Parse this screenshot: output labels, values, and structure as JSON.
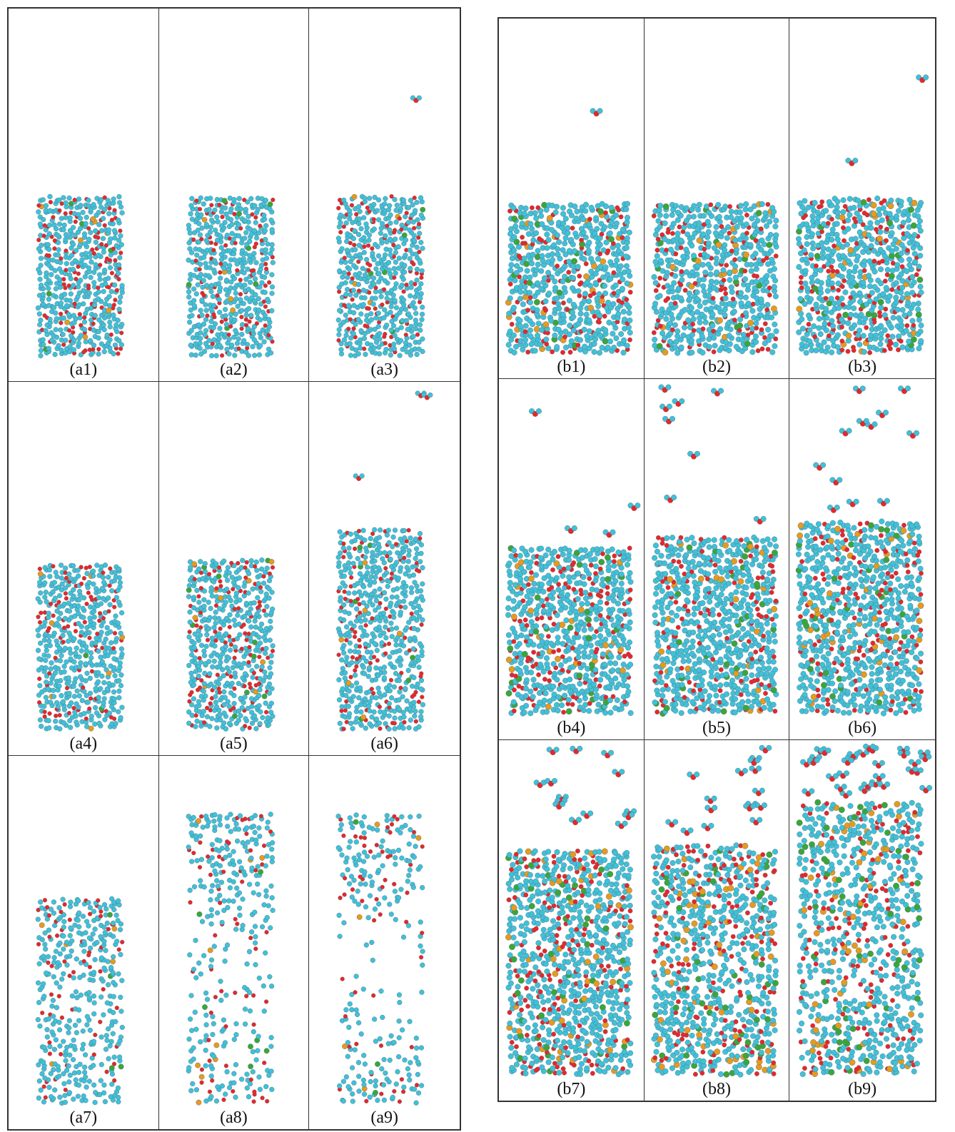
{
  "panels_a": [
    {
      "label": "(a1)",
      "fill": 0.45,
      "voids": 0.02,
      "accent": 0.02,
      "gas": 0
    },
    {
      "label": "(a2)",
      "fill": 0.45,
      "voids": 0.02,
      "accent": 0.02,
      "gas": 0
    },
    {
      "label": "(a3)",
      "fill": 0.45,
      "voids": 0.03,
      "accent": 0.02,
      "gas": 1
    },
    {
      "label": "(a4)",
      "fill": 0.47,
      "voids": 0.05,
      "accent": 0.03,
      "gas": 0
    },
    {
      "label": "(a5)",
      "fill": 0.48,
      "voids": 0.06,
      "accent": 0.03,
      "gas": 0
    },
    {
      "label": "(a6)",
      "fill": 0.57,
      "voids": 0.12,
      "accent": 0.03,
      "gas": 3
    },
    {
      "label": "(a7)",
      "fill": 0.58,
      "voids": 0.35,
      "accent": 0.03,
      "gas": 0
    },
    {
      "label": "(a8)",
      "fill": 0.82,
      "voids": 0.55,
      "accent": 0.04,
      "gas": 0
    },
    {
      "label": "(a9)",
      "fill": 0.82,
      "voids": 0.62,
      "accent": 0.05,
      "gas": 0
    }
  ],
  "panels_b": [
    {
      "label": "(b1)",
      "fill": 0.43,
      "voids": 0.03,
      "accent": 0.07,
      "gas": 1
    },
    {
      "label": "(b2)",
      "fill": 0.44,
      "voids": 0.03,
      "accent": 0.07,
      "gas": 0
    },
    {
      "label": "(b3)",
      "fill": 0.46,
      "voids": 0.04,
      "accent": 0.08,
      "gas": 2
    },
    {
      "label": "(b4)",
      "fill": 0.48,
      "voids": 0.04,
      "accent": 0.08,
      "gas": 4
    },
    {
      "label": "(b5)",
      "fill": 0.52,
      "voids": 0.05,
      "accent": 0.09,
      "gas": 8
    },
    {
      "label": "(b6)",
      "fill": 0.57,
      "voids": 0.06,
      "accent": 0.09,
      "gas": 12
    },
    {
      "label": "(b7)",
      "fill": 0.66,
      "voids": 0.12,
      "accent": 0.12,
      "gas": 14
    },
    {
      "label": "(b8)",
      "fill": 0.68,
      "voids": 0.18,
      "accent": 0.14,
      "gas": 16
    },
    {
      "label": "(b9)",
      "fill": 0.8,
      "voids": 0.3,
      "accent": 0.16,
      "gas": 30
    }
  ],
  "colors": {
    "atom_main": "#3fc1d9",
    "atom_secondary": "#e8262a",
    "atom_accent_green": "#3aa63a",
    "atom_accent_orange": "#e59a20",
    "bond": "#5a6a72",
    "frame": "#333333"
  }
}
